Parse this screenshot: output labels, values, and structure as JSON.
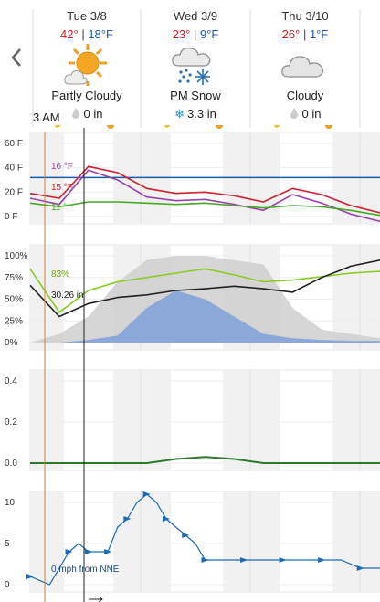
{
  "nav": {
    "prev_icon": "chevron-left-icon"
  },
  "days": [
    {
      "name": "Tue 3/8",
      "hi": "42°",
      "lo": "18°F",
      "sep": " | ",
      "condition": "Partly Cloudy",
      "precip": "0 in",
      "icon": "partly-cloudy-icon",
      "precip_icon": "raindrop-icon"
    },
    {
      "name": "Wed 3/9",
      "hi": "23°",
      "lo": "9°F",
      "sep": " | ",
      "condition": "PM Snow",
      "precip": "3.3 in",
      "icon": "snow-icon",
      "precip_icon": "snowflake-icon"
    },
    {
      "name": "Thu 3/10",
      "hi": "26°",
      "lo": "1°F",
      "sep": " | ",
      "condition": "Cloudy",
      "precip": "0 in",
      "icon": "cloudy-icon",
      "precip_icon": "raindrop-icon"
    }
  ],
  "time_label": "3 AM",
  "colors": {
    "hi": "#cc2222",
    "lo": "#1a5aa8",
    "temp": "#cc2233",
    "feels": "#9944aa",
    "dew": "#44aa22",
    "freeze": "#1a5aa8",
    "humidity": "#88cc22",
    "pressure": "#222222",
    "cloud": "#cfcfcf",
    "precip_chance": "#7fa0d8",
    "wind": "#1a6ab8",
    "precip_amount": "#2a7a2a"
  },
  "chart_data": [
    {
      "type": "line",
      "panel": "temperature",
      "yticks": [
        "60 F",
        "40 F",
        "20 F",
        "0 F"
      ],
      "ylim": [
        -5,
        65
      ],
      "x_hours": [
        0,
        6,
        12,
        18,
        24,
        30,
        36,
        42,
        48,
        54,
        60,
        66,
        72
      ],
      "series": [
        {
          "key": "temp",
          "values": [
            19,
            15,
            41,
            36,
            23,
            19,
            20,
            17,
            12,
            23,
            18,
            9,
            3
          ],
          "label": "15 °F"
        },
        {
          "key": "feels",
          "values": [
            15,
            10,
            38,
            30,
            16,
            13,
            14,
            10,
            5,
            18,
            11,
            2,
            -4
          ],
          "label": "16 °F"
        },
        {
          "key": "dew",
          "values": [
            11,
            8,
            12,
            12,
            11,
            10,
            11,
            9,
            7,
            9,
            8,
            5,
            1
          ],
          "label": "11 °"
        }
      ],
      "freezing_line": 32
    },
    {
      "type": "area",
      "panel": "sky",
      "yticks": [
        "100%",
        "75%",
        "50%",
        "25%",
        "0%"
      ],
      "ylim": [
        0,
        100
      ],
      "x_hours": [
        0,
        6,
        12,
        18,
        24,
        30,
        36,
        42,
        48,
        54,
        60,
        66,
        72
      ],
      "series": [
        {
          "key": "cloud",
          "values": [
            0,
            10,
            30,
            70,
            95,
            100,
            100,
            95,
            90,
            40,
            15,
            10,
            5
          ]
        },
        {
          "key": "precip_chance",
          "values": [
            0,
            0,
            3,
            8,
            40,
            60,
            50,
            30,
            10,
            5,
            3,
            2,
            2
          ]
        },
        {
          "key": "humidity",
          "values": [
            85,
            35,
            60,
            70,
            75,
            80,
            85,
            78,
            70,
            72,
            76,
            80,
            82
          ],
          "label": "83%"
        },
        {
          "key": "pressure",
          "values": [
            66,
            30,
            45,
            52,
            55,
            60,
            62,
            65,
            62,
            58,
            75,
            88,
            95
          ],
          "label": "30.26 in"
        }
      ]
    },
    {
      "type": "area",
      "panel": "precip_amount",
      "yticks": [
        "0.4",
        "0.2",
        "0.0"
      ],
      "ylim": [
        0,
        0.5
      ],
      "x_hours": [
        0,
        6,
        12,
        18,
        24,
        30,
        36,
        42,
        48,
        54,
        60,
        66,
        72
      ],
      "series": [
        {
          "key": "precip_amount",
          "values": [
            0,
            0,
            0,
            0,
            0,
            0.02,
            0.03,
            0.02,
            0,
            0,
            0,
            0,
            0
          ]
        }
      ]
    },
    {
      "type": "line",
      "panel": "wind",
      "yticks": [
        "10",
        "5",
        "0"
      ],
      "ylim": [
        0,
        11
      ],
      "x_hours": [
        0,
        4,
        8,
        10,
        12,
        14,
        16,
        18,
        20,
        22,
        24,
        26,
        28,
        30,
        32,
        34,
        36,
        40,
        44,
        48,
        52,
        56,
        60,
        64,
        68,
        72
      ],
      "series": [
        {
          "key": "wind",
          "values": [
            1,
            0,
            4,
            5,
            4,
            4,
            4,
            7,
            8,
            10,
            11,
            10,
            8,
            7,
            6,
            5,
            3,
            3,
            3,
            3,
            3,
            3,
            3,
            3,
            2,
            2
          ],
          "label": "0 mph from NNE"
        }
      ]
    }
  ]
}
